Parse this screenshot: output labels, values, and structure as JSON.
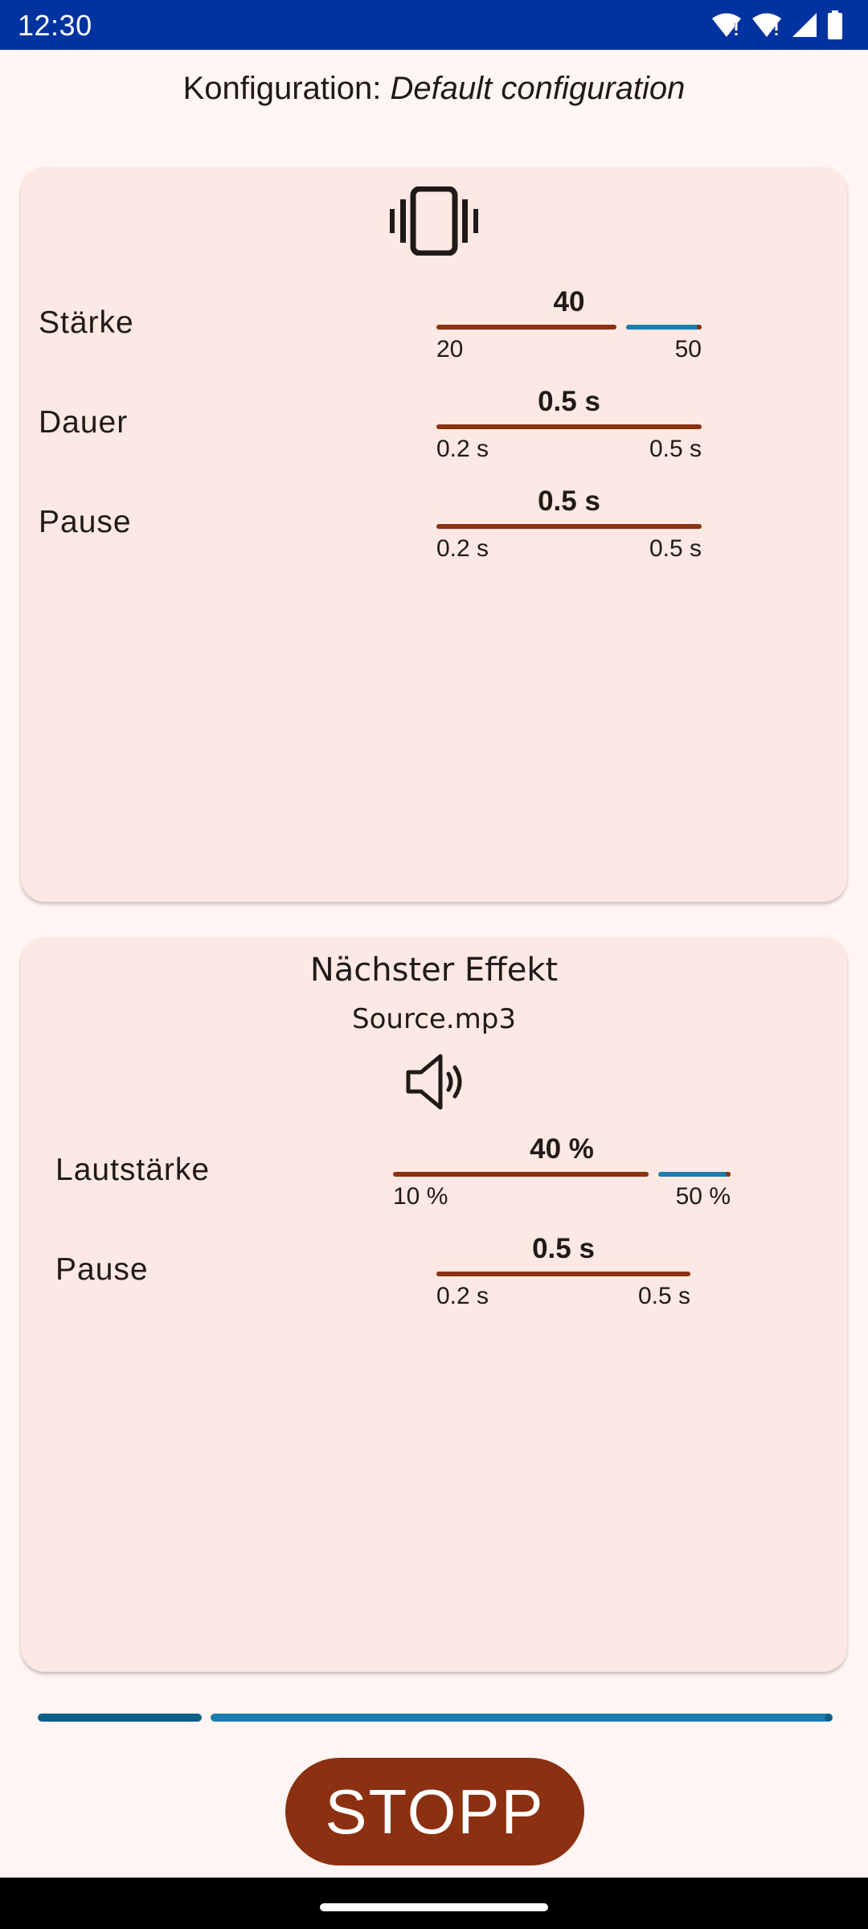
{
  "status": {
    "time": "12:30"
  },
  "config": {
    "label": "Konfiguration:",
    "name": "Default configuration"
  },
  "vibration": {
    "icon": "vibration-icon",
    "rows": [
      {
        "label": "Stärke",
        "value": "40",
        "min": "20",
        "max": "50",
        "fraction": 0.67
      },
      {
        "label": "Dauer",
        "value": "0.5 s",
        "min": "0.2 s",
        "max": "0.5 s",
        "fraction": 1.0
      },
      {
        "label": "Pause",
        "value": "0.5 s",
        "min": "0.2 s",
        "max": "0.5 s",
        "fraction": 1.0
      }
    ]
  },
  "next_effect": {
    "title": "Nächster Effekt",
    "source": "Source.mp3",
    "icon": "speaker-icon",
    "rows": [
      {
        "label": "Lautstärke",
        "value": "40 %",
        "min": "10 %",
        "max": "50 %",
        "fraction": 0.75
      },
      {
        "label": "Pause",
        "value": "0.5 s",
        "min": "0.2 s",
        "max": "0.5 s",
        "fraction": 1.0
      }
    ]
  },
  "progress": {
    "fraction": 0.2
  },
  "stop_button": {
    "label": "STOPP"
  },
  "colors": {
    "primary": "#8b3010",
    "secondary": "#1a7fb0",
    "status_bar": "#0033a0",
    "card": "#fde8e3"
  }
}
